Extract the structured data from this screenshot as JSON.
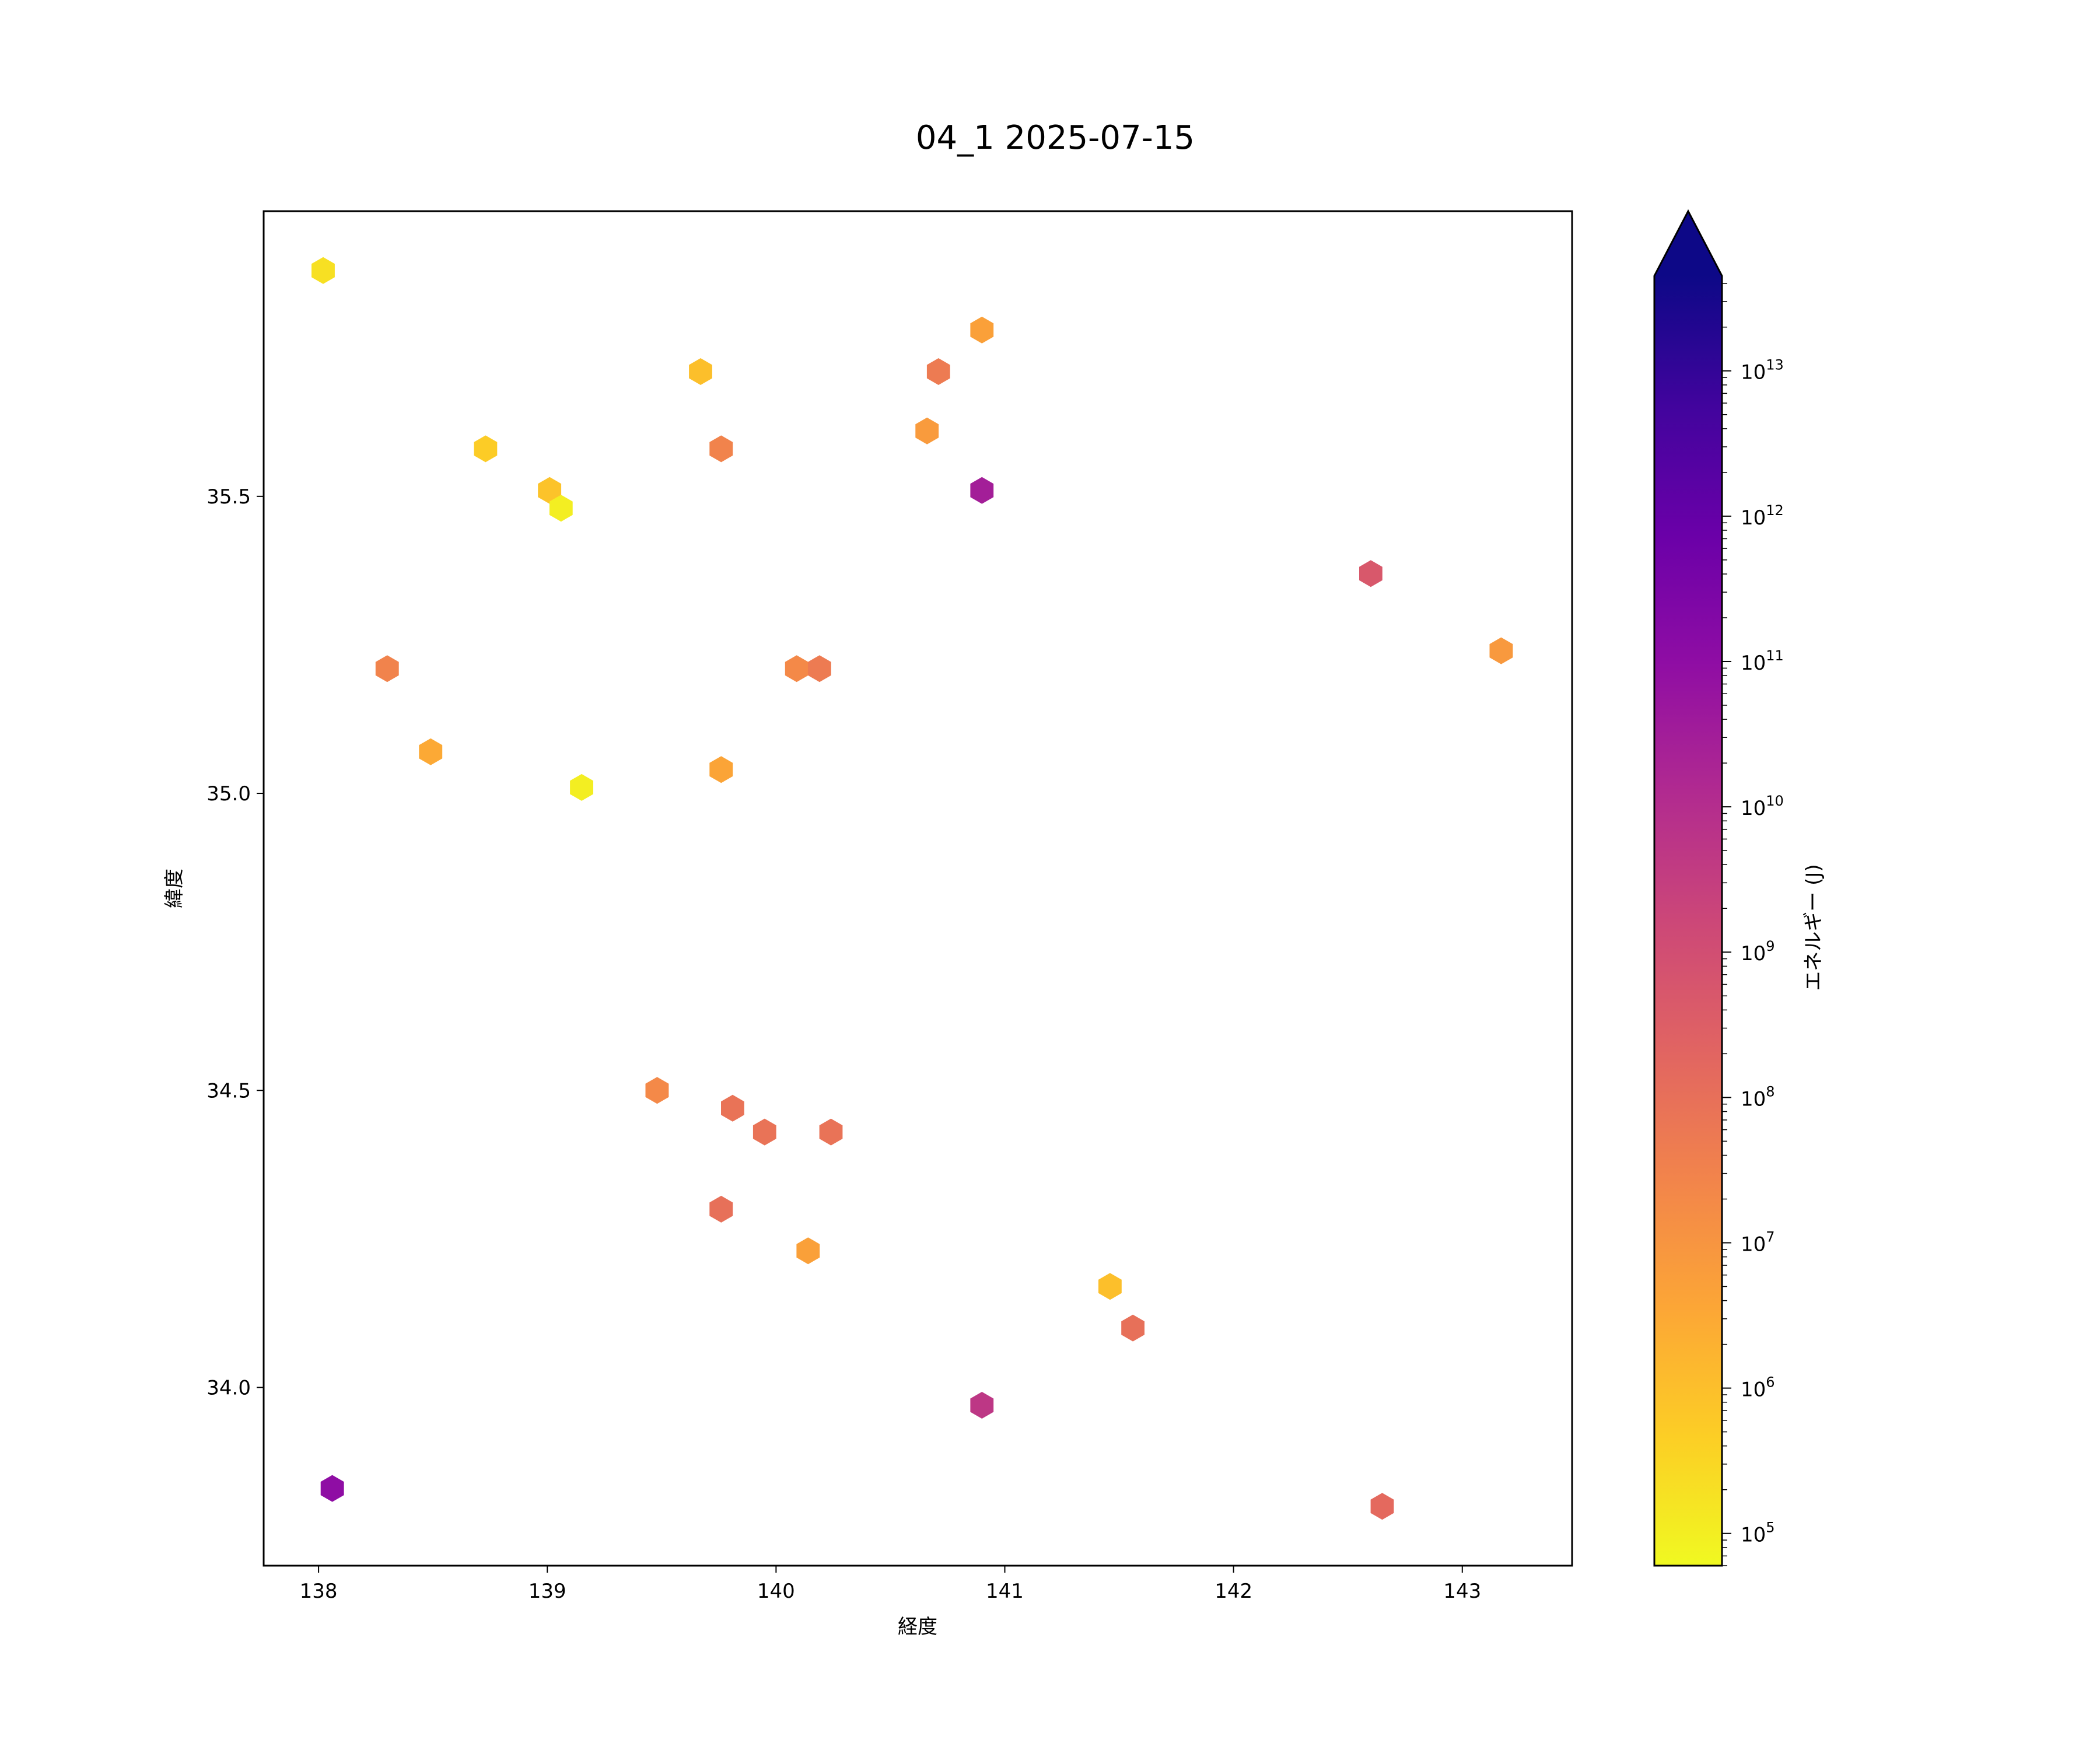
{
  "chart_data": {
    "type": "hexbin",
    "title": "04_1 2025-07-15",
    "xlabel": "経度",
    "ylabel": "緯度",
    "xlim": [
      137.76,
      143.48
    ],
    "ylim": [
      33.7,
      35.98
    ],
    "xticks": [
      "138",
      "139",
      "140",
      "141",
      "142",
      "143"
    ],
    "yticks": [
      "34.0",
      "34.5",
      "35.0",
      "35.5"
    ],
    "grid": false,
    "colorbar": {
      "label": "エネルギー (J)",
      "colormap": "plasma",
      "scale": "log",
      "range": [
        60000,
        45000000000000
      ],
      "extend": "max",
      "ticks": [
        {
          "base": "10",
          "exp": "5"
        },
        {
          "base": "10",
          "exp": "6"
        },
        {
          "base": "10",
          "exp": "7"
        },
        {
          "base": "10",
          "exp": "8"
        },
        {
          "base": "10",
          "exp": "9"
        },
        {
          "base": "10",
          "exp": "10"
        },
        {
          "base": "10",
          "exp": "11"
        },
        {
          "base": "10",
          "exp": "12"
        },
        {
          "base": "10",
          "exp": "13"
        }
      ]
    },
    "points": [
      {
        "lon": 138.02,
        "lat": 35.88,
        "energy": 200000
      },
      {
        "lon": 139.67,
        "lat": 35.71,
        "energy": 1000000
      },
      {
        "lon": 140.9,
        "lat": 35.78,
        "energy": 5000000
      },
      {
        "lon": 140.71,
        "lat": 35.71,
        "energy": 50000000
      },
      {
        "lon": 138.73,
        "lat": 35.58,
        "energy": 500000
      },
      {
        "lon": 139.76,
        "lat": 35.58,
        "energy": 30000000
      },
      {
        "lon": 140.66,
        "lat": 35.61,
        "energy": 7000000
      },
      {
        "lon": 139.01,
        "lat": 35.51,
        "energy": 800000
      },
      {
        "lon": 139.06,
        "lat": 35.48,
        "energy": 100000
      },
      {
        "lon": 140.9,
        "lat": 35.51,
        "energy": 30000000000
      },
      {
        "lon": 142.6,
        "lat": 35.37,
        "energy": 500000000
      },
      {
        "lon": 143.17,
        "lat": 35.24,
        "energy": 8000000
      },
      {
        "lon": 138.3,
        "lat": 35.21,
        "energy": 30000000
      },
      {
        "lon": 140.09,
        "lat": 35.21,
        "energy": 20000000
      },
      {
        "lon": 140.19,
        "lat": 35.21,
        "energy": 50000000
      },
      {
        "lon": 138.49,
        "lat": 35.07,
        "energy": 3000000
      },
      {
        "lon": 139.76,
        "lat": 35.04,
        "energy": 4000000
      },
      {
        "lon": 139.15,
        "lat": 35.01,
        "energy": 100000
      },
      {
        "lon": 139.48,
        "lat": 34.5,
        "energy": 20000000
      },
      {
        "lon": 139.81,
        "lat": 34.47,
        "energy": 80000000
      },
      {
        "lon": 139.95,
        "lat": 34.43,
        "energy": 80000000
      },
      {
        "lon": 140.24,
        "lat": 34.43,
        "energy": 80000000
      },
      {
        "lon": 139.76,
        "lat": 34.3,
        "energy": 100000000
      },
      {
        "lon": 140.14,
        "lat": 34.23,
        "energy": 5000000
      },
      {
        "lon": 141.46,
        "lat": 34.17,
        "energy": 1000000
      },
      {
        "lon": 141.56,
        "lat": 34.1,
        "energy": 100000000
      },
      {
        "lon": 140.9,
        "lat": 33.97,
        "energy": 5000000000
      },
      {
        "lon": 138.06,
        "lat": 33.83,
        "energy": 100000000000
      },
      {
        "lon": 142.65,
        "lat": 33.8,
        "energy": 150000000
      }
    ]
  }
}
